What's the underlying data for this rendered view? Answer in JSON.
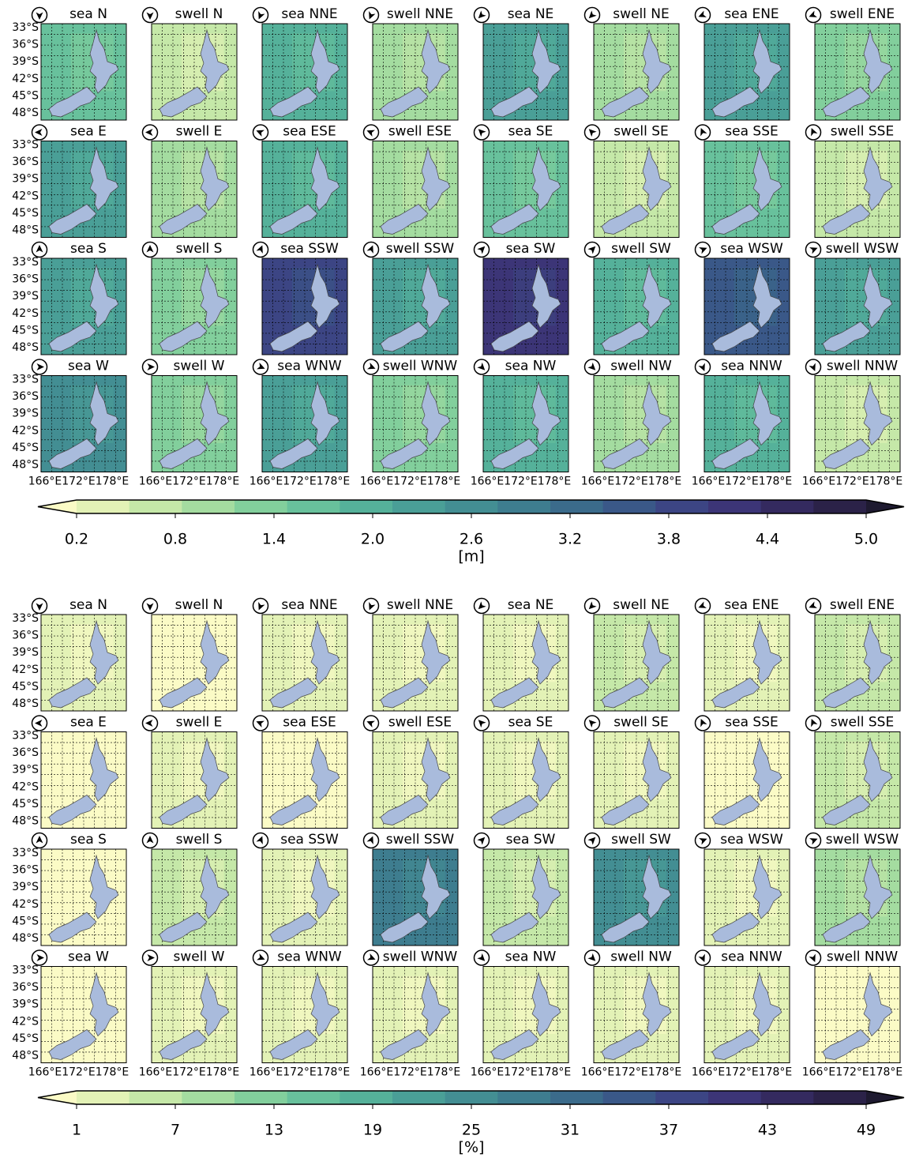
{
  "figures": [
    {
      "titles": [
        "sea N",
        "swell N",
        "sea NNE",
        "swell NNE",
        "sea NE",
        "swell NE",
        "sea ENE",
        "swell ENE",
        "sea E",
        "swell E",
        "sea ESE",
        "swell ESE",
        "sea SE",
        "swell SE",
        "sea SSE",
        "swell SSE",
        "sea S",
        "swell S",
        "sea SSW",
        "swell SSW",
        "sea SW",
        "swell SW",
        "sea WSW",
        "swell WSW",
        "sea W",
        "swell W",
        "sea WNW",
        "swell WNW",
        "sea NW",
        "swell NW",
        "sea NNW",
        "swell NNW"
      ],
      "yticks": [
        "33°S",
        "36°S",
        "39°S",
        "42°S",
        "45°S",
        "48°S"
      ],
      "xticks": [
        "166°E",
        "172°E",
        "178°E"
      ],
      "colorbar": {
        "ticks": [
          0.2,
          0.8,
          1.4,
          {
            "value": 2,
            "label": "2.0"
          },
          2.6,
          3.2,
          3.8,
          4.4,
          {
            "value": 5,
            "label": "5.0"
          }
        ],
        "label": "[m]",
        "colors": [
          "#fbfbc6",
          "#e3f2b6",
          "#c5e8a8",
          "#a4dca0",
          "#82cf9c",
          "#68c19c",
          "#55b19a",
          "#4a9f97",
          "#438e93",
          "#3e7d8f",
          "#3b6b8b",
          "#3a5888",
          "#3c4584",
          "#3c3577",
          "#342a5f",
          "#2b2248",
          "#1e1a30"
        ]
      }
    },
    {
      "titles": [
        "sea N",
        "swell N",
        "sea NNE",
        "swell NNE",
        "sea NE",
        "swell NE",
        "sea ENE",
        "swell ENE",
        "sea E",
        "swell E",
        "sea ESE",
        "swell ESE",
        "sea SE",
        "swell SE",
        "sea SSE",
        "swell SSE",
        "sea S",
        "swell S",
        "sea SSW",
        "swell SSW",
        "sea SW",
        "swell SW",
        "sea WSW",
        "swell WSW",
        "sea W",
        "swell W",
        "sea WNW",
        "swell WNW",
        "sea NW",
        "swell NW",
        "sea NNW",
        "swell NNW"
      ],
      "yticks": [
        "33°S",
        "36°S",
        "39°S",
        "42°S",
        "45°S",
        "48°S"
      ],
      "xticks": [
        "166°E",
        "172°E",
        "178°E"
      ],
      "colorbar": {
        "ticks": [
          1,
          7,
          13,
          19,
          25,
          31,
          37,
          43,
          49
        ],
        "label": "[%]",
        "colors": [
          "#fbfbc6",
          "#e3f2b6",
          "#c5e8a8",
          "#a4dca0",
          "#82cf9c",
          "#68c19c",
          "#55b19a",
          "#4a9f97",
          "#438e93",
          "#3e7d8f",
          "#3b6b8b",
          "#3a5888",
          "#3c4584",
          "#3c3577",
          "#342a5f",
          "#2b2248",
          "#1e1a30"
        ]
      }
    }
  ]
}
